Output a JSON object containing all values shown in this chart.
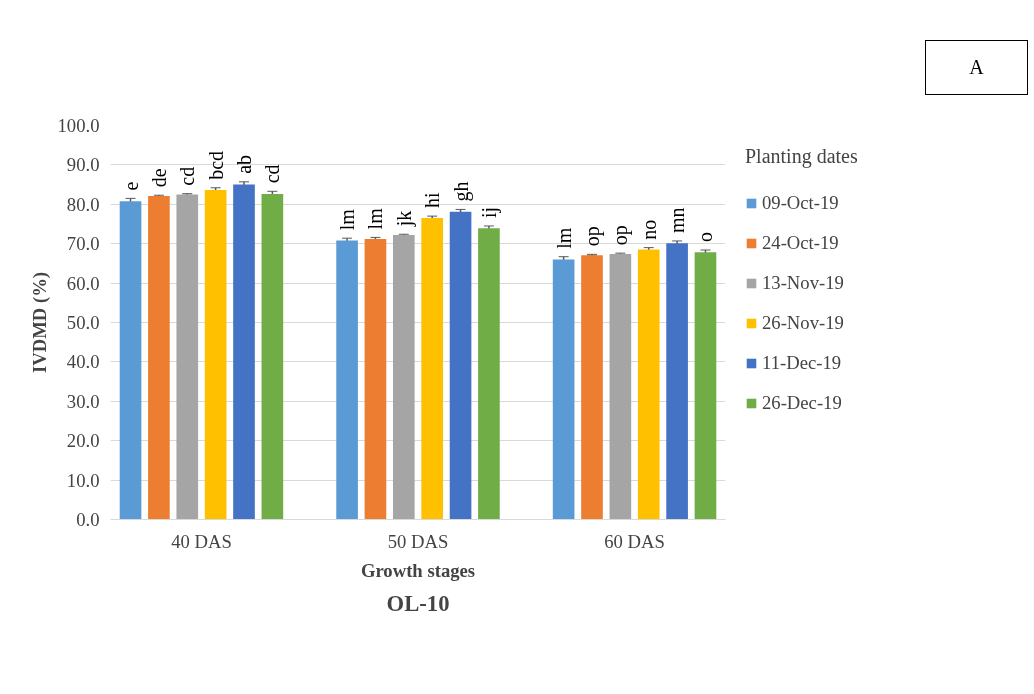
{
  "chart_data": {
    "type": "bar",
    "title": "OL-10",
    "xlabel": "Growth stages",
    "ylabel": "IVDMD (%)",
    "legend_title": "Planting dates",
    "annotations": [
      "A"
    ],
    "categories": [
      "40 DAS",
      "50 DAS",
      "60 DAS"
    ],
    "series": [
      {
        "name": "09-Oct-19",
        "color": "#5b9bd5",
        "values": [
          80.8,
          70.8,
          66.0
        ],
        "errors": [
          0.7,
          0.6,
          0.7
        ],
        "value_labels": [
          "e",
          "lm",
          "lm"
        ]
      },
      {
        "name": "24-Oct-19",
        "color": "#ed7d31",
        "values": [
          82.1,
          71.2,
          67.1
        ],
        "errors": [
          0.2,
          0.4,
          0.2
        ],
        "value_labels": [
          "de",
          "lm",
          "op"
        ]
      },
      {
        "name": "13-Nov-19",
        "color": "#a5a5a5",
        "values": [
          82.5,
          72.2,
          67.4
        ],
        "errors": [
          0.2,
          0.2,
          0.2
        ],
        "value_labels": [
          "cd",
          "jk",
          "op"
        ]
      },
      {
        "name": "26-Nov-19",
        "color": "#ffc000",
        "values": [
          83.6,
          76.5,
          68.5
        ],
        "errors": [
          0.6,
          0.5,
          0.5
        ],
        "value_labels": [
          "bcd",
          "hi",
          "no"
        ]
      },
      {
        "name": "11-Dec-19",
        "color": "#4472c4",
        "values": [
          85.0,
          78.1,
          70.1
        ],
        "errors": [
          0.7,
          0.6,
          0.6
        ],
        "value_labels": [
          "ab",
          "gh",
          "mn"
        ]
      },
      {
        "name": "26-Dec-19",
        "color": "#70ad47",
        "values": [
          82.6,
          73.9,
          67.8
        ],
        "errors": [
          0.7,
          0.6,
          0.6
        ],
        "value_labels": [
          "cd",
          "ij",
          "o"
        ]
      }
    ],
    "ylim": [
      0,
      100
    ],
    "yticks": [
      {
        "value": 0,
        "label": "0.0"
      },
      {
        "value": 10,
        "label": "10.0"
      },
      {
        "value": 20,
        "label": "20.0"
      },
      {
        "value": 30,
        "label": "30.0"
      },
      {
        "value": 40,
        "label": "40.0"
      },
      {
        "value": 50,
        "label": "50.0"
      },
      {
        "value": 60,
        "label": "60.0"
      },
      {
        "value": 70,
        "label": "70.0"
      },
      {
        "value": 80,
        "label": "80.0"
      },
      {
        "value": 90,
        "label": "90.0"
      },
      {
        "value": 100,
        "label": "100.0"
      }
    ],
    "grid": "y",
    "legend": "right"
  }
}
